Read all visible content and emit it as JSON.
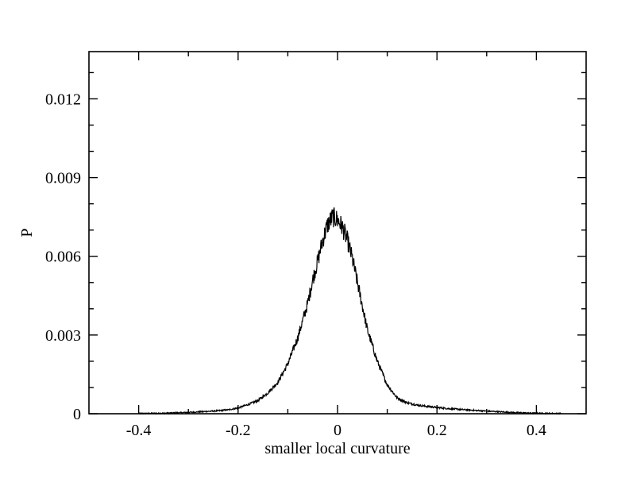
{
  "chart_data": {
    "type": "line",
    "title": "",
    "xlabel": "smaller local curvature",
    "ylabel": "P",
    "xlim": [
      -0.5,
      0.5
    ],
    "ylim": [
      0,
      0.0138
    ],
    "xticks": [
      -0.4,
      -0.2,
      0,
      0.2,
      0.4
    ],
    "xtick_labels": [
      "-0.4",
      "-0.2",
      "0",
      "0.2",
      "0.4"
    ],
    "yticks": [
      0,
      0.003,
      0.006,
      0.009,
      0.012
    ],
    "ytick_labels": [
      "0",
      "0.003",
      "0.006",
      "0.009",
      "0.012"
    ],
    "grid": false,
    "legend": "none",
    "line_color": "#000000",
    "series": [
      {
        "x": [
          -0.4,
          -0.35,
          -0.3,
          -0.25,
          -0.22,
          -0.2,
          -0.18,
          -0.16,
          -0.14,
          -0.12,
          -0.1,
          -0.08,
          -0.06,
          -0.05,
          -0.04,
          -0.03,
          -0.02,
          -0.01,
          0.0,
          0.01,
          0.02,
          0.03,
          0.04,
          0.05,
          0.06,
          0.08,
          0.1,
          0.12,
          0.14,
          0.16,
          0.18,
          0.2,
          0.22,
          0.25,
          0.3,
          0.35,
          0.4,
          0.45
        ],
        "values": [
          1e-05,
          2e-05,
          5e-05,
          0.0001,
          0.00015,
          0.00022,
          0.00035,
          0.0005,
          0.0008,
          0.0012,
          0.0019,
          0.0029,
          0.0042,
          0.0051,
          0.0058,
          0.0066,
          0.0072,
          0.0075,
          0.0074,
          0.0071,
          0.0066,
          0.0059,
          0.005,
          0.0041,
          0.0032,
          0.002,
          0.0011,
          0.0006,
          0.00042,
          0.00033,
          0.00028,
          0.00024,
          0.0002,
          0.00016,
          0.0001,
          5e-05,
          2e-05,
          1e-05
        ]
      }
    ]
  }
}
